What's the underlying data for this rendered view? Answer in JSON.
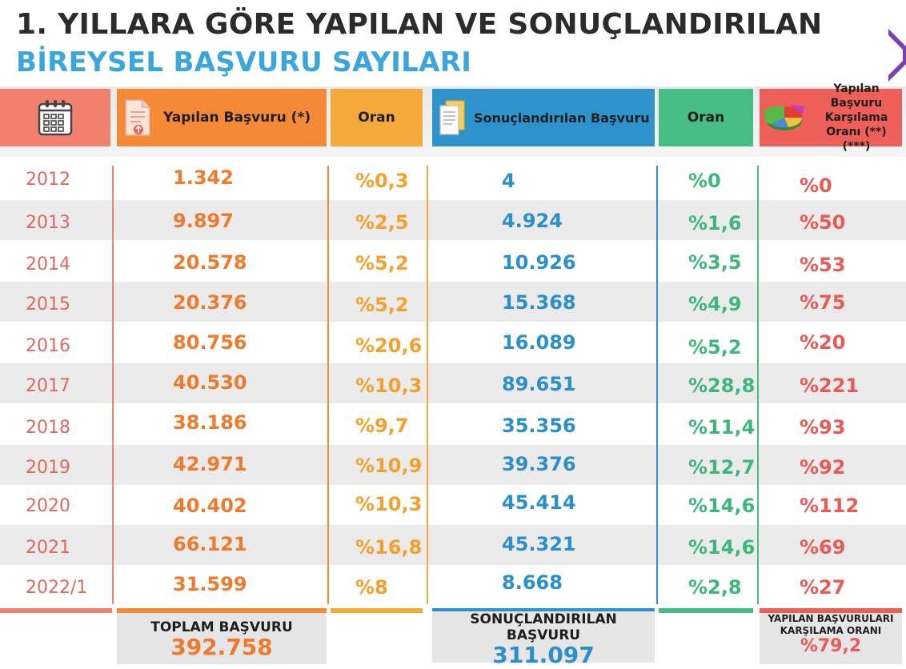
{
  "title": {
    "line1": "1. YILLARA GÖRE YAPILAN VE SONUÇLANDIRILAN",
    "line2": "BİREYSEL BAŞVURU SAYILARI"
  },
  "headers": {
    "year_icon": "calendar-icon",
    "yapilan": "Yapılan Başvuru (*)",
    "yapilan_icon": "document-upload-icon",
    "oran1": "Oran",
    "sonuc": "Sonuçlandırılan Başvuru",
    "sonuc_icon": "documents-icon",
    "oran2": "Oran",
    "karsilama_line1": "Yapılan Başvuru",
    "karsilama_line2": "Karşılama",
    "karsilama_line3": "Oranı (**) (***)",
    "karsilama_icon": "pie-chart-icon"
  },
  "rows": [
    {
      "year": "2012",
      "yapilan": "1.342",
      "oran1": "%0,3",
      "sonuc": "4",
      "oran2": "%0",
      "karsilama": "%0"
    },
    {
      "year": "2013",
      "yapilan": "9.897",
      "oran1": "%2,5",
      "sonuc": "4.924",
      "oran2": "%1,6",
      "karsilama": "%50"
    },
    {
      "year": "2014",
      "yapilan": "20.578",
      "oran1": "%5,2",
      "sonuc": "10.926",
      "oran2": "%3,5",
      "karsilama": "%53"
    },
    {
      "year": "2015",
      "yapilan": "20.376",
      "oran1": "%5,2",
      "sonuc": "15.368",
      "oran2": "%4,9",
      "karsilama": "%75"
    },
    {
      "year": "2016",
      "yapilan": "80.756",
      "oran1": "%20,6",
      "sonuc": "16.089",
      "oran2": "%5,2",
      "karsilama": "%20"
    },
    {
      "year": "2017",
      "yapilan": "40.530",
      "oran1": "%10,3",
      "sonuc": "89.651",
      "oran2": "%28,8",
      "karsilama": "%221"
    },
    {
      "year": "2018",
      "yapilan": "38.186",
      "oran1": "%9,7",
      "sonuc": "35.356",
      "oran2": "%11,4",
      "karsilama": "%93"
    },
    {
      "year": "2019",
      "yapilan": "42.971",
      "oran1": "%10,9",
      "sonuc": "39.376",
      "oran2": "%12,7",
      "karsilama": "%92"
    },
    {
      "year": "2020",
      "yapilan": "40.402",
      "oran1": "%10,3",
      "sonuc": "45.414",
      "oran2": "%14,6",
      "karsilama": "%112"
    },
    {
      "year": "2021",
      "yapilan": "66.121",
      "oran1": "%16,8",
      "sonuc": "45.321",
      "oran2": "%14,6",
      "karsilama": "%69"
    },
    {
      "year": "2022/1",
      "yapilan": "31.599",
      "oran1": "%8",
      "sonuc": "8.668",
      "oran2": "%2,8",
      "karsilama": "%27"
    }
  ],
  "footer": {
    "toplam_label": "TOPLAM BAŞVURU",
    "toplam_value": "392.758",
    "sonuc_label": "SONUÇLANDIRILAN BAŞVURU",
    "sonuc_value": "311.097",
    "karsilama_line1": "YAPILAN BAŞVURULARI",
    "karsilama_line2": "KARŞILAMA ORANI",
    "karsilama_value": "%79,2"
  },
  "colors": {
    "year": "#f2806e",
    "yapilan": "#f58a36",
    "oran1": "#f4a93a",
    "sonuc": "#2e93cd",
    "oran2": "#46bd85",
    "karsilama": "#ee5f5a",
    "title_blue": "#3aa6dc"
  }
}
